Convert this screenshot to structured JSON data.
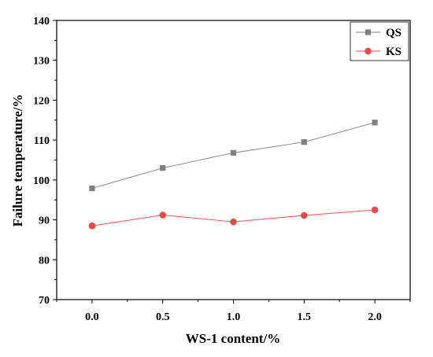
{
  "chart_data": {
    "type": "line",
    "x": [
      0.0,
      0.5,
      1.0,
      1.5,
      2.0
    ],
    "x_tick_labels": [
      "0.0",
      "0.5",
      "1.0",
      "1.5",
      "2.0"
    ],
    "xlim": [
      -0.25,
      2.25
    ],
    "y_ticks": [
      70,
      80,
      90,
      100,
      110,
      120,
      130,
      140
    ],
    "ylim": [
      70,
      140
    ],
    "xlabel": "WS-1 content/%",
    "ylabel": "Failure temperature/%",
    "grid": false,
    "legend_position": "top-right",
    "series": [
      {
        "name": "QS",
        "values": [
          97.9,
          103.0,
          106.8,
          109.5,
          114.4
        ],
        "color": "#808080",
        "marker": "square"
      },
      {
        "name": "KS",
        "values": [
          88.5,
          91.2,
          89.5,
          91.1,
          92.5
        ],
        "color": "#f24747",
        "marker": "circle"
      }
    ]
  }
}
